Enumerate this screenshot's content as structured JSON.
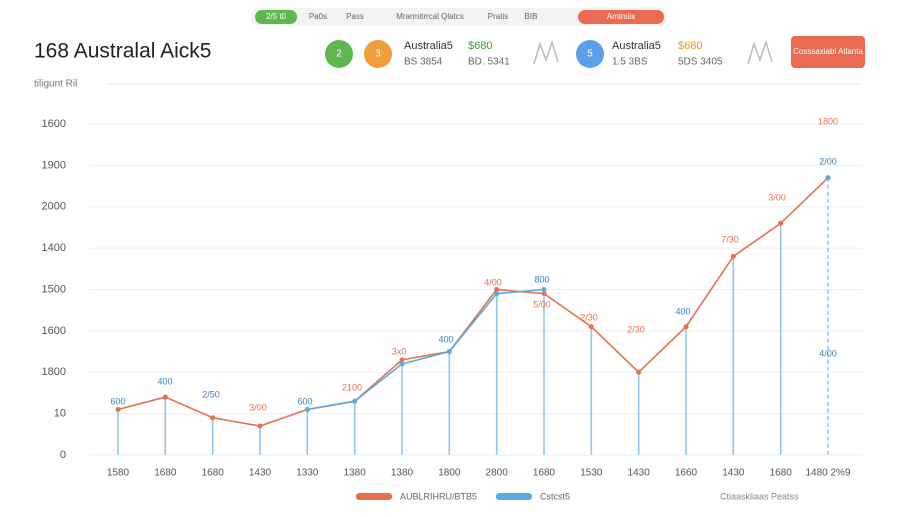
{
  "ui": {
    "top_pills": [
      "2/5 t0",
      "Pa0s",
      "Pass",
      "Mrarmitrrcal Qlatcs",
      "Pratis",
      "BIB",
      "Amtrsiis"
    ],
    "badges": [
      "2",
      "3",
      "5"
    ],
    "stat_a": {
      "name": "Australia5",
      "value": "$680",
      "line1": "BS 3854",
      "line2": "BD. 5341"
    },
    "stat_b": {
      "name": "Australia5",
      "value": "$680",
      "line1": "1.5 3BS",
      "line2": "5DS 3405"
    },
    "button": "Cosssaxlabl Atlanta",
    "footer_note": "Ctiaaskliaas Peatss"
  },
  "chart_data": {
    "type": "line",
    "title": "168 Australal Aick5",
    "subtitle": "tiligunt Ril",
    "categories": [
      "1580",
      "1680",
      "1680",
      "1430",
      "1330",
      "1380",
      "1380",
      "1800",
      "2800",
      "1680",
      "1530",
      "1430",
      "1660",
      "1430",
      "1680",
      "1480 2%9"
    ],
    "series": [
      {
        "name": "AUBLRIHRU/BTB5",
        "color": "#e8704f",
        "values": [
          1.1,
          1.4,
          0.9,
          0.7,
          1.1,
          1.3,
          2.3,
          2.5,
          4.0,
          3.9,
          3.1,
          2.0,
          3.1,
          4.8,
          5.6,
          6.7
        ]
      },
      {
        "name": "Cstcst5",
        "color": "#5aa9e0",
        "values": [
          null,
          null,
          null,
          null,
          1.1,
          1.3,
          2.2,
          2.5,
          3.9,
          4.0,
          null,
          null,
          null,
          null,
          null,
          6.7
        ]
      }
    ],
    "annotations": [
      "600",
      "400",
      "2/50",
      "3/00",
      "600",
      "2100",
      "3x0",
      "400",
      "4/00",
      "800",
      "5/00",
      "2/30",
      "2/30",
      "400",
      "7/30",
      "3/00",
      "2/00",
      "1800",
      "4/00"
    ],
    "ylim": [
      0,
      8
    ],
    "yticks": [
      {
        "value": 0,
        "label": "0"
      },
      {
        "value": 1,
        "label": "10"
      },
      {
        "value": 2,
        "label": "1800"
      },
      {
        "value": 3,
        "label": "1600"
      },
      {
        "value": 4,
        "label": "1500"
      },
      {
        "value": 5,
        "label": "1400"
      },
      {
        "value": 6,
        "label": "2000"
      },
      {
        "value": 7,
        "label": "1900"
      },
      {
        "value": 8,
        "label": "1600"
      }
    ],
    "grid": true
  }
}
